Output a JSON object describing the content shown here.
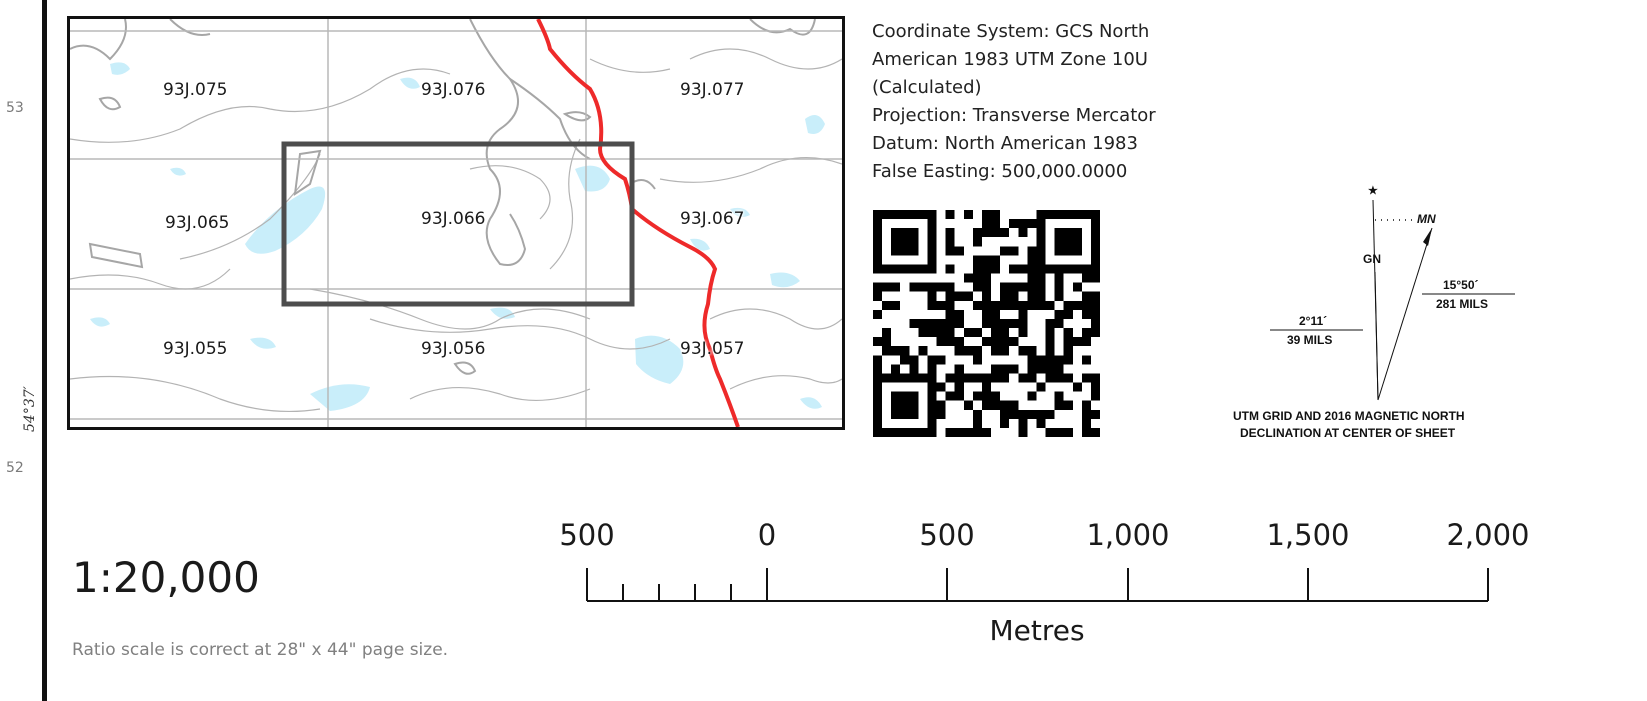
{
  "margin": {
    "grid_numbers": [
      "53",
      "52"
    ],
    "latitude_label": "54°37′"
  },
  "map": {
    "tiles": [
      {
        "id": "93J.075"
      },
      {
        "id": "93J.076"
      },
      {
        "id": "93J.077"
      },
      {
        "id": "93J.065"
      },
      {
        "id": "93J.066"
      },
      {
        "id": "93J.067"
      },
      {
        "id": "93J.055"
      },
      {
        "id": "93J.056"
      },
      {
        "id": "93J.057"
      }
    ],
    "colors": {
      "water": "#c9eefa",
      "contour": "#b3b3b3",
      "lake_outline": "#a6a6a6",
      "road": "#ee2a2a",
      "grid": "#b8b8b8",
      "highlight_box": "#4d4d4d"
    }
  },
  "info": {
    "lines": [
      "Coordinate System: GCS North",
      "American 1983 UTM Zone 10U",
      "(Calculated)",
      "Projection: Transverse Mercator",
      "Datum: North American 1983",
      "False Easting: 500,000.0000"
    ]
  },
  "declination": {
    "star_label": "★",
    "mn_label": "MN",
    "gn_label": "GN",
    "mn_angle": "15°50´",
    "mn_mils": "281 MILS",
    "gn_angle": "2°11´",
    "gn_mils": "39 MILS",
    "caption_line1": "UTM GRID AND 2016 MAGNETIC NORTH",
    "caption_line2": "DECLINATION AT CENTER OF SHEET"
  },
  "scale": {
    "ratio": "1:20,000",
    "note": "Ratio scale is correct at 28\" x 44\" page size.",
    "labels": [
      "500",
      "0",
      "500",
      "1,000",
      "1,500",
      "2,000"
    ],
    "units": "Metres"
  }
}
